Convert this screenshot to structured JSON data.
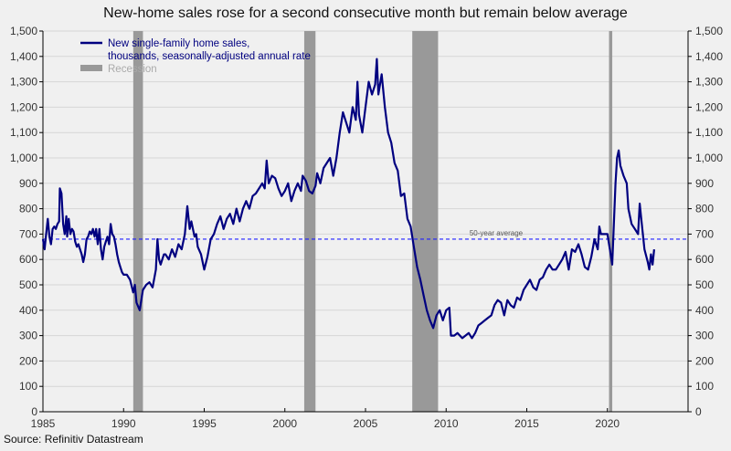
{
  "title": "New-home sales rose for a second consecutive month but remain below average",
  "source": "Source: Refinitiv Datastream",
  "chart_data": {
    "type": "line",
    "title": "New-home sales rose for a second consecutive month but remain below average",
    "xlabel": "",
    "ylabel": "",
    "xlim": [
      1985,
      2025
    ],
    "ylim": [
      0,
      1500
    ],
    "x_ticks": [
      "1985",
      "1990",
      "1995",
      "2000",
      "2005",
      "2010",
      "2015",
      "2020"
    ],
    "y_ticks": [
      "0",
      "100",
      "200",
      "300",
      "400",
      "500",
      "600",
      "700",
      "800",
      "900",
      "1,000",
      "1,100",
      "1,200",
      "1,300",
      "1,400",
      "1,500"
    ],
    "grid": true,
    "legend_position": "top-left",
    "colors": {
      "series": "#000080",
      "recession": "#999999",
      "average": "#2020ff",
      "background": "#f0f0f0",
      "grid": "#d6d6d6"
    },
    "legend": {
      "series": "New single-family home sales,",
      "series_line2": "thousands, seasonally-adjusted annual rate",
      "recession": "Recession"
    },
    "average": {
      "label": "50-year average",
      "value": 680
    },
    "recessions": [
      [
        1990.6,
        1991.2
      ],
      [
        2001.2,
        2001.9
      ],
      [
        2007.9,
        2009.5
      ],
      [
        2020.1,
        2020.3
      ]
    ],
    "series": [
      {
        "name": "New single-family home sales, thousands, seasonally-adjusted annual rate",
        "points": [
          [
            1985.0,
            680
          ],
          [
            1985.1,
            640
          ],
          [
            1985.2,
            700
          ],
          [
            1985.3,
            760
          ],
          [
            1985.4,
            690
          ],
          [
            1985.5,
            660
          ],
          [
            1985.6,
            720
          ],
          [
            1985.7,
            730
          ],
          [
            1985.8,
            720
          ],
          [
            1985.9,
            740
          ],
          [
            1986.0,
            750
          ],
          [
            1986.05,
            880
          ],
          [
            1986.15,
            860
          ],
          [
            1986.25,
            740
          ],
          [
            1986.35,
            700
          ],
          [
            1986.45,
            770
          ],
          [
            1986.5,
            690
          ],
          [
            1986.6,
            760
          ],
          [
            1986.7,
            700
          ],
          [
            1986.8,
            720
          ],
          [
            1986.9,
            710
          ],
          [
            1987.0,
            670
          ],
          [
            1987.1,
            650
          ],
          [
            1987.2,
            660
          ],
          [
            1987.3,
            640
          ],
          [
            1987.4,
            620
          ],
          [
            1987.5,
            590
          ],
          [
            1987.6,
            620
          ],
          [
            1987.7,
            680
          ],
          [
            1987.8,
            690
          ],
          [
            1987.9,
            710
          ],
          [
            1988.0,
            700
          ],
          [
            1988.1,
            720
          ],
          [
            1988.2,
            690
          ],
          [
            1988.3,
            720
          ],
          [
            1988.4,
            660
          ],
          [
            1988.5,
            720
          ],
          [
            1988.6,
            640
          ],
          [
            1988.7,
            600
          ],
          [
            1988.8,
            650
          ],
          [
            1988.9,
            670
          ],
          [
            1989.0,
            690
          ],
          [
            1989.1,
            660
          ],
          [
            1989.2,
            740
          ],
          [
            1989.3,
            700
          ],
          [
            1989.4,
            690
          ],
          [
            1989.5,
            660
          ],
          [
            1989.6,
            620
          ],
          [
            1989.7,
            590
          ],
          [
            1989.8,
            570
          ],
          [
            1989.9,
            550
          ],
          [
            1990.0,
            540
          ],
          [
            1990.2,
            540
          ],
          [
            1990.4,
            520
          ],
          [
            1990.6,
            470
          ],
          [
            1990.7,
            500
          ],
          [
            1990.8,
            430
          ],
          [
            1991.0,
            400
          ],
          [
            1991.2,
            480
          ],
          [
            1991.4,
            500
          ],
          [
            1991.6,
            510
          ],
          [
            1991.8,
            490
          ],
          [
            1992.0,
            560
          ],
          [
            1992.1,
            680
          ],
          [
            1992.2,
            600
          ],
          [
            1992.3,
            580
          ],
          [
            1992.4,
            600
          ],
          [
            1992.5,
            620
          ],
          [
            1992.6,
            620
          ],
          [
            1992.8,
            600
          ],
          [
            1993.0,
            640
          ],
          [
            1993.2,
            610
          ],
          [
            1993.4,
            660
          ],
          [
            1993.6,
            640
          ],
          [
            1993.8,
            700
          ],
          [
            1993.95,
            810
          ],
          [
            1994.1,
            720
          ],
          [
            1994.2,
            750
          ],
          [
            1994.4,
            690
          ],
          [
            1994.5,
            700
          ],
          [
            1994.6,
            650
          ],
          [
            1994.8,
            620
          ],
          [
            1995.0,
            560
          ],
          [
            1995.2,
            610
          ],
          [
            1995.4,
            680
          ],
          [
            1995.6,
            700
          ],
          [
            1995.8,
            740
          ],
          [
            1996.0,
            770
          ],
          [
            1996.2,
            720
          ],
          [
            1996.4,
            760
          ],
          [
            1996.6,
            780
          ],
          [
            1996.8,
            740
          ],
          [
            1997.0,
            800
          ],
          [
            1997.2,
            750
          ],
          [
            1997.4,
            800
          ],
          [
            1997.6,
            830
          ],
          [
            1997.8,
            800
          ],
          [
            1998.0,
            850
          ],
          [
            1998.2,
            860
          ],
          [
            1998.4,
            880
          ],
          [
            1998.6,
            900
          ],
          [
            1998.75,
            880
          ],
          [
            1998.87,
            990
          ],
          [
            1999.0,
            900
          ],
          [
            1999.2,
            930
          ],
          [
            1999.4,
            920
          ],
          [
            1999.6,
            880
          ],
          [
            1999.8,
            850
          ],
          [
            2000.0,
            870
          ],
          [
            2000.2,
            900
          ],
          [
            2000.4,
            830
          ],
          [
            2000.6,
            870
          ],
          [
            2000.8,
            900
          ],
          [
            2001.0,
            870
          ],
          [
            2001.1,
            930
          ],
          [
            2001.3,
            910
          ],
          [
            2001.5,
            870
          ],
          [
            2001.7,
            860
          ],
          [
            2001.9,
            890
          ],
          [
            2002.0,
            940
          ],
          [
            2002.2,
            900
          ],
          [
            2002.4,
            960
          ],
          [
            2002.6,
            980
          ],
          [
            2002.8,
            1000
          ],
          [
            2003.0,
            930
          ],
          [
            2003.2,
            1000
          ],
          [
            2003.4,
            1100
          ],
          [
            2003.6,
            1180
          ],
          [
            2003.8,
            1140
          ],
          [
            2004.0,
            1100
          ],
          [
            2004.2,
            1200
          ],
          [
            2004.4,
            1150
          ],
          [
            2004.5,
            1300
          ],
          [
            2004.6,
            1170
          ],
          [
            2004.8,
            1100
          ],
          [
            2005.0,
            1200
          ],
          [
            2005.2,
            1300
          ],
          [
            2005.4,
            1250
          ],
          [
            2005.6,
            1290
          ],
          [
            2005.7,
            1390
          ],
          [
            2005.8,
            1250
          ],
          [
            2006.0,
            1330
          ],
          [
            2006.2,
            1200
          ],
          [
            2006.4,
            1100
          ],
          [
            2006.6,
            1060
          ],
          [
            2006.8,
            980
          ],
          [
            2007.0,
            950
          ],
          [
            2007.2,
            850
          ],
          [
            2007.4,
            860
          ],
          [
            2007.6,
            760
          ],
          [
            2007.8,
            730
          ],
          [
            2008.0,
            650
          ],
          [
            2008.2,
            570
          ],
          [
            2008.4,
            520
          ],
          [
            2008.6,
            460
          ],
          [
            2008.8,
            400
          ],
          [
            2009.0,
            360
          ],
          [
            2009.2,
            330
          ],
          [
            2009.4,
            380
          ],
          [
            2009.6,
            400
          ],
          [
            2009.8,
            360
          ],
          [
            2010.0,
            400
          ],
          [
            2010.2,
            410
          ],
          [
            2010.3,
            300
          ],
          [
            2010.5,
            300
          ],
          [
            2010.7,
            310
          ],
          [
            2011.0,
            290
          ],
          [
            2011.2,
            300
          ],
          [
            2011.4,
            310
          ],
          [
            2011.6,
            290
          ],
          [
            2011.8,
            310
          ],
          [
            2012.0,
            340
          ],
          [
            2012.2,
            350
          ],
          [
            2012.4,
            360
          ],
          [
            2012.6,
            370
          ],
          [
            2012.8,
            380
          ],
          [
            2013.0,
            420
          ],
          [
            2013.2,
            440
          ],
          [
            2013.4,
            430
          ],
          [
            2013.6,
            380
          ],
          [
            2013.8,
            440
          ],
          [
            2014.0,
            420
          ],
          [
            2014.2,
            410
          ],
          [
            2014.4,
            450
          ],
          [
            2014.6,
            440
          ],
          [
            2014.8,
            480
          ],
          [
            2015.0,
            500
          ],
          [
            2015.2,
            520
          ],
          [
            2015.4,
            490
          ],
          [
            2015.6,
            480
          ],
          [
            2015.8,
            520
          ],
          [
            2016.0,
            530
          ],
          [
            2016.2,
            560
          ],
          [
            2016.4,
            580
          ],
          [
            2016.6,
            560
          ],
          [
            2016.8,
            560
          ],
          [
            2017.0,
            580
          ],
          [
            2017.2,
            600
          ],
          [
            2017.4,
            630
          ],
          [
            2017.6,
            560
          ],
          [
            2017.8,
            640
          ],
          [
            2018.0,
            630
          ],
          [
            2018.2,
            660
          ],
          [
            2018.4,
            620
          ],
          [
            2018.6,
            570
          ],
          [
            2018.8,
            560
          ],
          [
            2019.0,
            610
          ],
          [
            2019.2,
            680
          ],
          [
            2019.4,
            640
          ],
          [
            2019.5,
            730
          ],
          [
            2019.6,
            700
          ],
          [
            2019.8,
            700
          ],
          [
            2020.0,
            700
          ],
          [
            2020.2,
            620
          ],
          [
            2020.3,
            580
          ],
          [
            2020.5,
            900
          ],
          [
            2020.6,
            1000
          ],
          [
            2020.7,
            1030
          ],
          [
            2020.8,
            970
          ],
          [
            2021.0,
            930
          ],
          [
            2021.2,
            900
          ],
          [
            2021.3,
            800
          ],
          [
            2021.5,
            740
          ],
          [
            2021.7,
            720
          ],
          [
            2021.9,
            700
          ],
          [
            2022.0,
            820
          ],
          [
            2022.1,
            760
          ],
          [
            2022.3,
            640
          ],
          [
            2022.5,
            590
          ],
          [
            2022.6,
            560
          ],
          [
            2022.7,
            620
          ],
          [
            2022.8,
            580
          ],
          [
            2022.9,
            640
          ]
        ]
      }
    ]
  }
}
